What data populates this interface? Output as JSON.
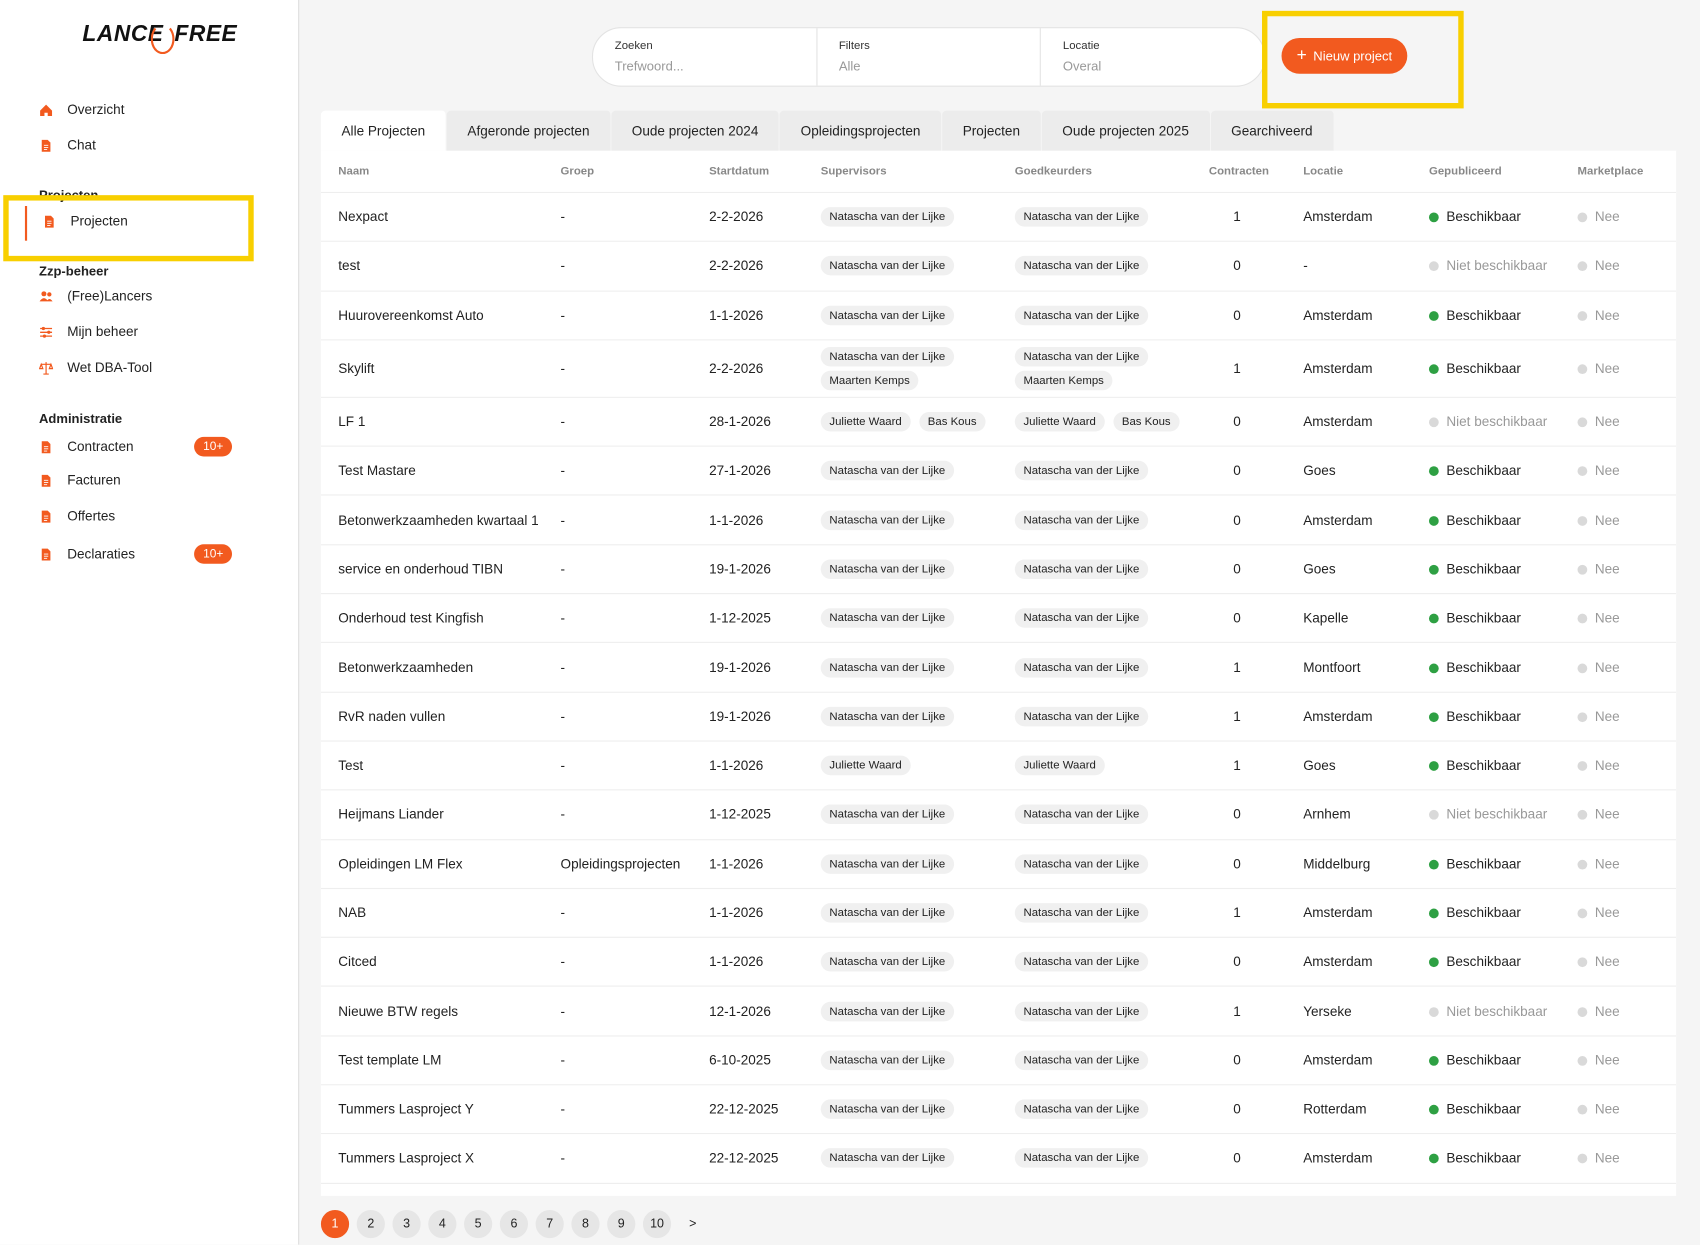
{
  "logo": {
    "left": "LANCE",
    "right": "FREE"
  },
  "sidebar": {
    "top_items": [
      {
        "label": "Overzicht",
        "icon": "home"
      },
      {
        "label": "Chat",
        "icon": "doc"
      }
    ],
    "sections": [
      {
        "title": "Projecten",
        "items": [
          {
            "label": "Projecten",
            "icon": "doc",
            "active": true
          }
        ]
      },
      {
        "title": "Zzp-beheer",
        "items": [
          {
            "label": "(Free)Lancers",
            "icon": "people"
          },
          {
            "label": "Mijn beheer",
            "icon": "sliders"
          },
          {
            "label": "Wet DBA-Tool",
            "icon": "scale"
          }
        ]
      },
      {
        "title": "Administratie",
        "items": [
          {
            "label": "Contracten",
            "icon": "doc",
            "badge": "10+"
          },
          {
            "label": "Facturen",
            "icon": "doc"
          },
          {
            "label": "Offertes",
            "icon": "doc"
          },
          {
            "label": "Declaraties",
            "icon": "doc",
            "badge": "10+"
          }
        ]
      }
    ]
  },
  "search": [
    {
      "label": "Zoeken",
      "placeholder": "Trefwoord..."
    },
    {
      "label": "Filters",
      "placeholder": "Alle"
    },
    {
      "label": "Locatie",
      "placeholder": "Overal"
    }
  ],
  "new_button": "Nieuw project",
  "tabs": [
    "Alle Projecten",
    "Afgeronde projecten",
    "Oude projecten 2024",
    "Opleidingsprojecten",
    "Projecten",
    "Oude projecten 2025",
    "Gearchiveerd"
  ],
  "table": {
    "headers": [
      "Naam",
      "Groep",
      "Startdatum",
      "Supervisors",
      "Goedkeurders",
      "Contracten",
      "Locatie",
      "Gepubliceerd",
      "Marketplace"
    ],
    "rows": [
      {
        "name": "Nexpact",
        "group": "-",
        "start": "2-2-2026",
        "supervisors": [
          "Natascha van der Lijke"
        ],
        "approvers": [
          "Natascha van der Lijke"
        ],
        "contracts": "1",
        "location": "Amsterdam",
        "published": "Beschikbaar",
        "published_color": "#2ea043",
        "marketplace": "Nee"
      },
      {
        "name": "test",
        "group": "-",
        "start": "2-2-2026",
        "supervisors": [
          "Natascha van der Lijke"
        ],
        "approvers": [
          "Natascha van der Lijke"
        ],
        "contracts": "0",
        "location": "-",
        "published": "Niet beschikbaar",
        "published_color": "#d9d9d9",
        "marketplace": "Nee"
      },
      {
        "name": "Huurovereenkomst Auto",
        "group": "-",
        "start": "1-1-2026",
        "supervisors": [
          "Natascha van der Lijke"
        ],
        "approvers": [
          "Natascha van der Lijke"
        ],
        "contracts": "0",
        "location": "Amsterdam",
        "published": "Beschikbaar",
        "published_color": "#2ea043",
        "marketplace": "Nee"
      },
      {
        "name": "Skylift",
        "group": "-",
        "start": "2-2-2026",
        "supervisors": [
          "Natascha van der Lijke",
          "Maarten Kemps"
        ],
        "approvers": [
          "Natascha van der Lijke",
          "Maarten Kemps"
        ],
        "contracts": "1",
        "location": "Amsterdam",
        "published": "Beschikbaar",
        "published_color": "#2ea043",
        "marketplace": "Nee"
      },
      {
        "name": "LF 1",
        "group": "-",
        "start": "28-1-2026",
        "supervisors": [
          "Juliette Waard",
          "Bas Kous"
        ],
        "approvers": [
          "Juliette Waard",
          "Bas Kous"
        ],
        "contracts": "0",
        "location": "Amsterdam",
        "published": "Niet beschikbaar",
        "published_color": "#d9d9d9",
        "marketplace": "Nee"
      },
      {
        "name": "Test Mastare",
        "group": "-",
        "start": "27-1-2026",
        "supervisors": [
          "Natascha van der Lijke"
        ],
        "approvers": [
          "Natascha van der Lijke"
        ],
        "contracts": "0",
        "location": "Goes",
        "published": "Beschikbaar",
        "published_color": "#2ea043",
        "marketplace": "Nee"
      },
      {
        "name": "Betonwerkzaamheden kwartaal 1",
        "group": "-",
        "start": "1-1-2026",
        "supervisors": [
          "Natascha van der Lijke"
        ],
        "approvers": [
          "Natascha van der Lijke"
        ],
        "contracts": "0",
        "location": "Amsterdam",
        "published": "Beschikbaar",
        "published_color": "#2ea043",
        "marketplace": "Nee"
      },
      {
        "name": "service en onderhoud TIBN",
        "group": "-",
        "start": "19-1-2026",
        "supervisors": [
          "Natascha van der Lijke"
        ],
        "approvers": [
          "Natascha van der Lijke"
        ],
        "contracts": "0",
        "location": "Goes",
        "published": "Beschikbaar",
        "published_color": "#2ea043",
        "marketplace": "Nee"
      },
      {
        "name": "Onderhoud test Kingfish",
        "group": "-",
        "start": "1-12-2025",
        "supervisors": [
          "Natascha van der Lijke"
        ],
        "approvers": [
          "Natascha van der Lijke"
        ],
        "contracts": "0",
        "location": "Kapelle",
        "published": "Beschikbaar",
        "published_color": "#2ea043",
        "marketplace": "Nee"
      },
      {
        "name": "Betonwerkzaamheden",
        "group": "-",
        "start": "19-1-2026",
        "supervisors": [
          "Natascha van der Lijke"
        ],
        "approvers": [
          "Natascha van der Lijke"
        ],
        "contracts": "1",
        "location": "Montfoort",
        "published": "Beschikbaar",
        "published_color": "#2ea043",
        "marketplace": "Nee"
      },
      {
        "name": "RvR naden vullen",
        "group": "-",
        "start": "19-1-2026",
        "supervisors": [
          "Natascha van der Lijke"
        ],
        "approvers": [
          "Natascha van der Lijke"
        ],
        "contracts": "1",
        "location": "Amsterdam",
        "published": "Beschikbaar",
        "published_color": "#2ea043",
        "marketplace": "Nee"
      },
      {
        "name": "Test",
        "group": "-",
        "start": "1-1-2026",
        "supervisors": [
          "Juliette Waard"
        ],
        "approvers": [
          "Juliette Waard"
        ],
        "contracts": "1",
        "location": "Goes",
        "published": "Beschikbaar",
        "published_color": "#2ea043",
        "marketplace": "Nee"
      },
      {
        "name": "Heijmans Liander",
        "group": "-",
        "start": "1-12-2025",
        "supervisors": [
          "Natascha van der Lijke"
        ],
        "approvers": [
          "Natascha van der Lijke"
        ],
        "contracts": "0",
        "location": "Arnhem",
        "published": "Niet beschikbaar",
        "published_color": "#d9d9d9",
        "marketplace": "Nee"
      },
      {
        "name": "Opleidingen LM Flex",
        "group": "Opleidingsprojecten",
        "start": "1-1-2026",
        "supervisors": [
          "Natascha van der Lijke"
        ],
        "approvers": [
          "Natascha van der Lijke"
        ],
        "contracts": "0",
        "location": "Middelburg",
        "published": "Beschikbaar",
        "published_color": "#2ea043",
        "marketplace": "Nee"
      },
      {
        "name": "NAB",
        "group": "-",
        "start": "1-1-2026",
        "supervisors": [
          "Natascha van der Lijke"
        ],
        "approvers": [
          "Natascha van der Lijke"
        ],
        "contracts": "1",
        "location": "Amsterdam",
        "published": "Beschikbaar",
        "published_color": "#2ea043",
        "marketplace": "Nee"
      },
      {
        "name": "Citced",
        "group": "-",
        "start": "1-1-2026",
        "supervisors": [
          "Natascha van der Lijke"
        ],
        "approvers": [
          "Natascha van der Lijke"
        ],
        "contracts": "0",
        "location": "Amsterdam",
        "published": "Beschikbaar",
        "published_color": "#2ea043",
        "marketplace": "Nee"
      },
      {
        "name": "Nieuwe BTW regels",
        "group": "-",
        "start": "12-1-2026",
        "supervisors": [
          "Natascha van der Lijke"
        ],
        "approvers": [
          "Natascha van der Lijke"
        ],
        "contracts": "1",
        "location": "Yerseke",
        "published": "Niet beschikbaar",
        "published_color": "#d9d9d9",
        "marketplace": "Nee"
      },
      {
        "name": "Test template LM",
        "group": "-",
        "start": "6-10-2025",
        "supervisors": [
          "Natascha van der Lijke"
        ],
        "approvers": [
          "Natascha van der Lijke"
        ],
        "contracts": "0",
        "location": "Amsterdam",
        "published": "Beschikbaar",
        "published_color": "#2ea043",
        "marketplace": "Nee"
      },
      {
        "name": "Tummers Lasproject Y",
        "group": "-",
        "start": "22-12-2025",
        "supervisors": [
          "Natascha van der Lijke"
        ],
        "approvers": [
          "Natascha van der Lijke"
        ],
        "contracts": "0",
        "location": "Rotterdam",
        "published": "Beschikbaar",
        "published_color": "#2ea043",
        "marketplace": "Nee"
      },
      {
        "name": "Tummers Lasproject X",
        "group": "-",
        "start": "22-12-2025",
        "supervisors": [
          "Natascha van der Lijke"
        ],
        "approvers": [
          "Natascha van der Lijke"
        ],
        "contracts": "0",
        "location": "Amsterdam",
        "published": "Beschikbaar",
        "published_color": "#2ea043",
        "marketplace": "Nee"
      }
    ]
  },
  "pagination": [
    "1",
    "2",
    "3",
    "4",
    "5",
    "6",
    "7",
    "8",
    "9",
    "10",
    ">"
  ]
}
